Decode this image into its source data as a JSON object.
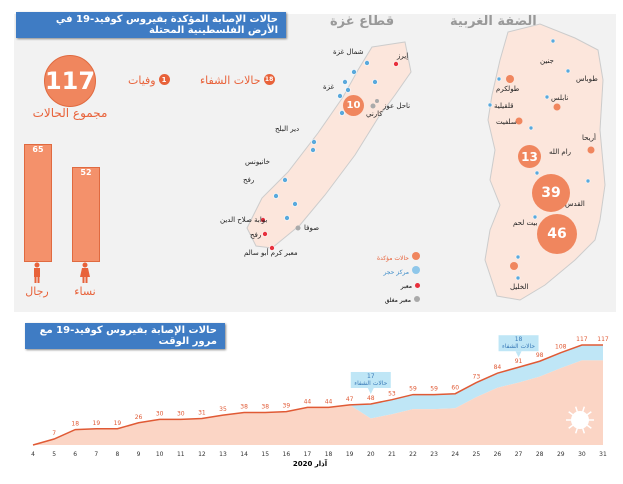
{
  "header": {
    "title": "حالات الإصابة المؤكدة بفيروس  كوفيد-19 في الأرض الفلسطينية المحتلة"
  },
  "summary": {
    "total": "117",
    "total_label": "مجموع الحالات",
    "deaths_count": "1",
    "deaths_label": "وفيات",
    "recovered_count": "18",
    "recovered_label": "حالات الشفاء"
  },
  "gender": {
    "men_value": "65",
    "men_label": "رجال",
    "women_value": "52",
    "women_label": "نساء"
  },
  "gaza": {
    "title": "قطاع غزة",
    "cases": "10",
    "labels": [
      "شمال غزة",
      "إيرز",
      "غزة",
      "ناحل عوز",
      "كارني",
      "دير البلح",
      "خانيونس",
      "رفح",
      "بوابة صلاح الدين",
      "رفح",
      "صوفا",
      "معبر كرم أبو سالم"
    ]
  },
  "westbank": {
    "title": "الضفة الغربية",
    "labels": [
      "جنين",
      "طوباس",
      "طولكرم",
      "نابلس",
      "قلقيلية",
      "سلفيت",
      "أريحا",
      "رام الله",
      "القدس",
      "بيت لحم",
      "الخليل"
    ],
    "bubbles": [
      "13",
      "39",
      "46"
    ]
  },
  "legend": {
    "confirmed": "حالات مؤكدة",
    "quarantine": "مركز حجر",
    "crossing": "معبر",
    "closed_crossing": "معبر مغلق"
  },
  "colors": {
    "confirmed": "#f0865e",
    "quarantine": "#5aa9dc",
    "crossing": "#e8303c",
    "closed": "#aaaaaa",
    "line": "#e05a35",
    "area": "#fbd5c5",
    "recovered_band": "#bfe6f6",
    "title_bg": "#3f7cc4"
  },
  "chart_data": [
    {
      "type": "bar",
      "categories": [
        "رجال",
        "نساء"
      ],
      "values": [
        65,
        52
      ]
    },
    {
      "type": "area",
      "title": "حالات الإصابة بفيروس كوفيد-19 مع مرور الوقت",
      "xlabel": "آذار 2020",
      "x": [
        4,
        5,
        6,
        7,
        8,
        9,
        10,
        11,
        12,
        13,
        14,
        15,
        16,
        17,
        18,
        19,
        20,
        21,
        22,
        23,
        24,
        25,
        26,
        27,
        28,
        29,
        30,
        31
      ],
      "series": [
        {
          "values": [
            0,
            7,
            18,
            19,
            19,
            26,
            30,
            30,
            31,
            35,
            38,
            38,
            39,
            44,
            44,
            47,
            48,
            53,
            59,
            59,
            60,
            73,
            84,
            91,
            98,
            108,
            117,
            117
          ]
        }
      ],
      "point_labels": [
        "",
        "7",
        "18",
        "19",
        "19",
        "26",
        "30",
        "30",
        "31",
        "35",
        "38",
        "38",
        "39",
        "44",
        "44",
        "47",
        "48",
        "53",
        "59",
        "59",
        "60",
        "73",
        "84",
        "91",
        "98",
        "108",
        "117",
        "117"
      ],
      "recovered": [
        0,
        0,
        0,
        0,
        0,
        0,
        0,
        0,
        0,
        0,
        0,
        0,
        0,
        0,
        0,
        0,
        17,
        17,
        17,
        17,
        17,
        17,
        17,
        18,
        18,
        18,
        18,
        18
      ],
      "annotations": [
        {
          "x": 20,
          "count": "17",
          "text": "حالات الشفاء"
        },
        {
          "x": 27,
          "count": "18",
          "text": "حالات الشفاء"
        }
      ],
      "ylim": [
        0,
        117
      ]
    }
  ]
}
